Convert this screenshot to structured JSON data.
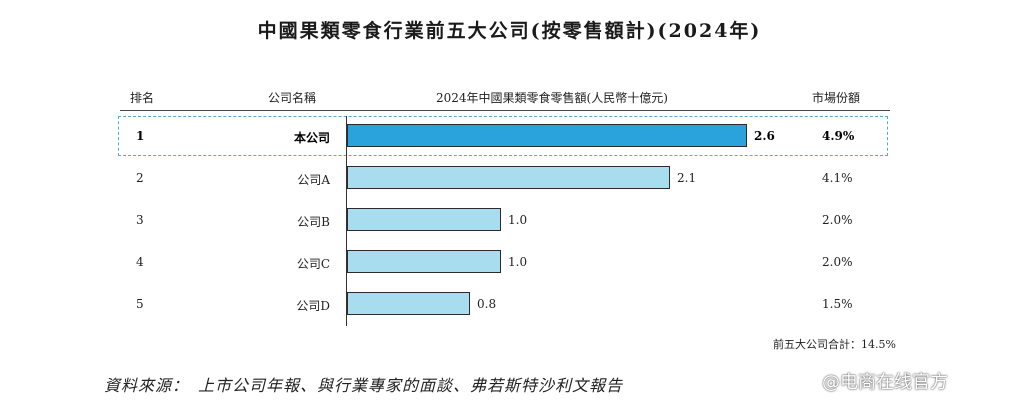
{
  "chart_data": {
    "type": "bar",
    "orientation": "horizontal",
    "title": "中國果類零食行業前五大公司(按零售額計)(2024年)",
    "columns": {
      "rank": "排名",
      "company": "公司名稱",
      "value": "2024年中國果類零食零售額(人民幣十億元)",
      "share": "市場份額"
    },
    "ranks": [
      "1",
      "2",
      "3",
      "4",
      "5"
    ],
    "categories": [
      "本公司",
      "公司A",
      "公司B",
      "公司C",
      "公司D"
    ],
    "values": [
      2.6,
      2.1,
      1.0,
      1.0,
      0.8
    ],
    "value_labels": [
      "2.6",
      "2.1",
      "1.0",
      "1.0",
      "0.8"
    ],
    "shares": [
      "4.9%",
      "4.1%",
      "2.0%",
      "2.0%",
      "1.5%"
    ],
    "highlight_index": 0,
    "colors": {
      "highlight": "#2aa3dc",
      "default": "#a8dcef",
      "highlight_border": "#5aa9c9"
    },
    "xlim": [
      0,
      2.6
    ],
    "grid": false,
    "total_note": "前五大公司合計：14.5%"
  },
  "source": "資料來源：　上市公司年報、與行業專家的面談、弗若斯特沙利文報告",
  "watermark": "@电商在线官方"
}
